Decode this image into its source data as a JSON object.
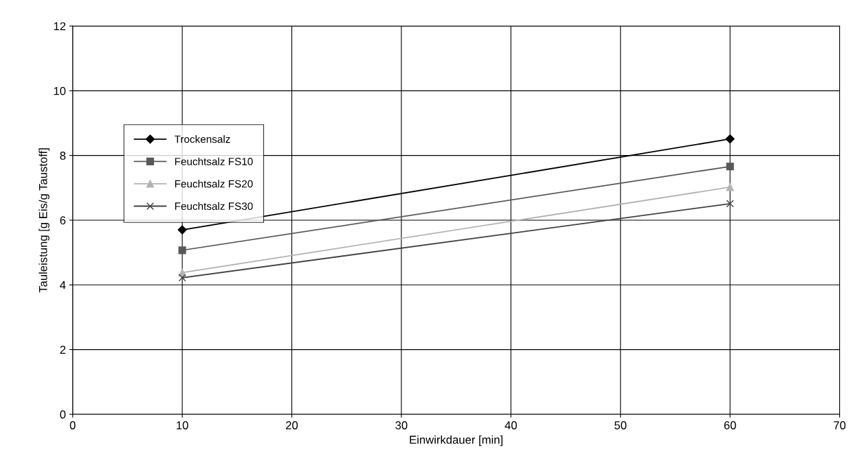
{
  "chart_data": {
    "type": "line",
    "xlabel": "Einwirkdauer [min]",
    "ylabel": "Tauleistung [g Eis/g Taustoff]",
    "x": [
      10,
      60
    ],
    "series": [
      {
        "name": "Trockensalz",
        "color": "#000000",
        "marker": "diamond",
        "values": [
          5.7,
          8.51
        ]
      },
      {
        "name": "Feuchtsalz FS10",
        "color": "#595959",
        "marker": "square",
        "values": [
          5.07,
          7.66
        ]
      },
      {
        "name": "Feuchtsalz FS20",
        "color": "#b3b3b3",
        "marker": "triangle",
        "values": [
          4.38,
          7.02
        ]
      },
      {
        "name": "Feuchtsalz FS30",
        "color": "#404040",
        "marker": "cross",
        "values": [
          4.22,
          6.51
        ]
      }
    ],
    "xlim": [
      0,
      70
    ],
    "xticks": [
      0,
      10,
      20,
      30,
      40,
      50,
      60,
      70
    ],
    "ylim": [
      0,
      12
    ],
    "yticks": [
      0,
      2,
      4,
      6,
      8,
      10,
      12
    ],
    "grid": true,
    "legend": "center left",
    "line_style": "solid"
  }
}
